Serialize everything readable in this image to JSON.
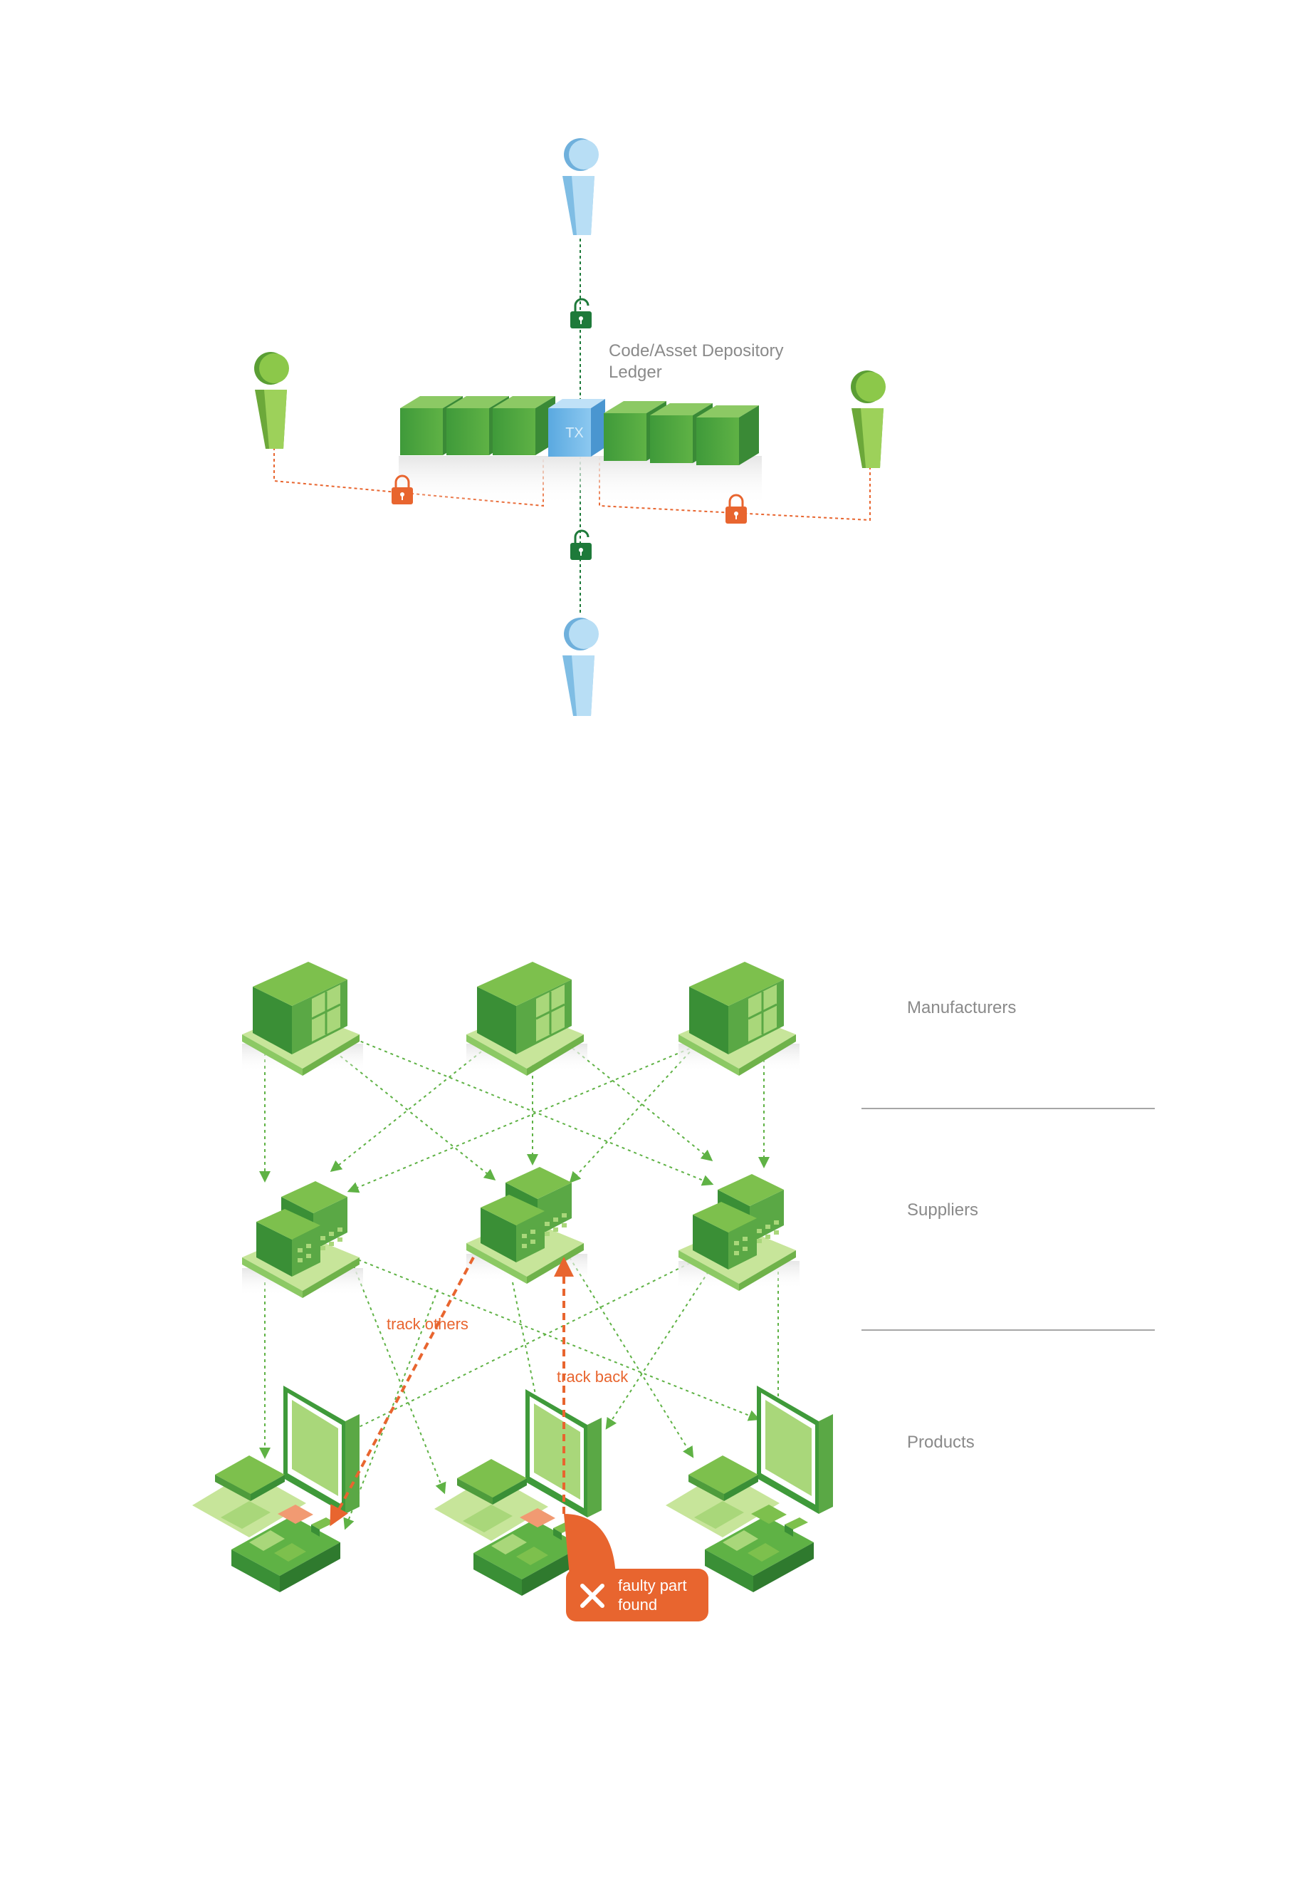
{
  "ledger_diagram": {
    "ledger_label_line1": "Code/Asset Depository",
    "ledger_label_line2": "Ledger",
    "tx_label": "TX",
    "participants": [
      {
        "role": "top",
        "color": "blue"
      },
      {
        "role": "left",
        "color": "green"
      },
      {
        "role": "right",
        "color": "green"
      },
      {
        "role": "bottom",
        "color": "blue"
      }
    ],
    "locks": [
      {
        "position": "top",
        "state": "unlocked",
        "color": "#1e7a3a"
      },
      {
        "position": "bottom",
        "state": "unlocked",
        "color": "#1e7a3a"
      },
      {
        "position": "left",
        "state": "locked",
        "color": "#e8652f"
      },
      {
        "position": "right",
        "state": "locked",
        "color": "#e8652f"
      }
    ],
    "blocks_left_count": 3,
    "blocks_right_count": 3
  },
  "supply_chain": {
    "tiers": [
      {
        "label": "Manufacturers"
      },
      {
        "label": "Suppliers"
      },
      {
        "label": "Products"
      }
    ],
    "track_others_label": "track others",
    "track_back_label": "track back",
    "alert": {
      "line1": "faulty part",
      "line2": "found"
    }
  },
  "colors": {
    "green_dark": "#3f9a3a",
    "green_mid": "#5fb245",
    "green_light": "#a9d77a",
    "blue": "#9fd0ee",
    "orange": "#e8652f",
    "label_gray": "#8a8a8a"
  }
}
